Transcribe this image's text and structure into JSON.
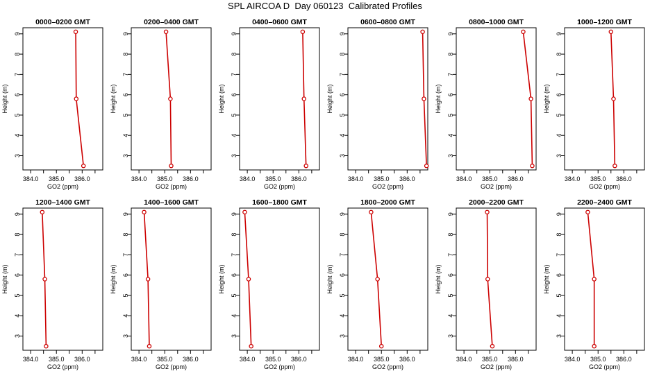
{
  "title": "SPL AIRCOA D  Day 060123  Calibrated Profiles",
  "chart_data": [
    {
      "type": "line",
      "title": "0000–0200 GMT",
      "xlabel": "GO2 (ppm)",
      "ylabel": "Height (m)",
      "xticks": [
        "384.0",
        "385.0",
        "386.0"
      ],
      "yticks": [
        "3",
        "4",
        "5",
        "6",
        "7",
        "8",
        "9"
      ],
      "xlim": [
        383.7,
        386.8
      ],
      "ylim": [
        2.3,
        9.3
      ],
      "color": "#cc0000",
      "x": [
        385.75,
        385.77,
        386.05
      ],
      "y": [
        9.1,
        5.8,
        2.5
      ]
    },
    {
      "type": "line",
      "title": "0200–0400 GMT",
      "xlabel": "GO2 (ppm)",
      "ylabel": "Height (m)",
      "xticks": [
        "384.0",
        "385.0",
        "386.0"
      ],
      "yticks": [
        "3",
        "4",
        "5",
        "6",
        "7",
        "8",
        "9"
      ],
      "xlim": [
        383.7,
        386.8
      ],
      "ylim": [
        2.3,
        9.3
      ],
      "color": "#cc0000",
      "x": [
        385.05,
        385.22,
        385.25
      ],
      "y": [
        9.1,
        5.8,
        2.5
      ]
    },
    {
      "type": "line",
      "title": "0400–0600 GMT",
      "xlabel": "GO2 (ppm)",
      "ylabel": "Height (m)",
      "xticks": [
        "384.0",
        "385.0",
        "386.0"
      ],
      "yticks": [
        "3",
        "4",
        "5",
        "6",
        "7",
        "8",
        "9"
      ],
      "xlim": [
        383.7,
        386.8
      ],
      "ylim": [
        2.3,
        9.3
      ],
      "color": "#cc0000",
      "x": [
        386.15,
        386.2,
        386.28
      ],
      "y": [
        9.1,
        5.8,
        2.5
      ]
    },
    {
      "type": "line",
      "title": "0600–0800 GMT",
      "xlabel": "GO2 (ppm)",
      "ylabel": "Height (m)",
      "xticks": [
        "384.0",
        "385.0",
        "386.0"
      ],
      "yticks": [
        "3",
        "4",
        "5",
        "6",
        "7",
        "8",
        "9"
      ],
      "xlim": [
        383.7,
        386.8
      ],
      "ylim": [
        2.3,
        9.3
      ],
      "color": "#cc0000",
      "x": [
        386.6,
        386.65,
        386.75
      ],
      "y": [
        9.1,
        5.8,
        2.5
      ]
    },
    {
      "type": "line",
      "title": "0800–1000 GMT",
      "xlabel": "GO2 (ppm)",
      "ylabel": "Height (m)",
      "xticks": [
        "384.0",
        "385.0",
        "386.0"
      ],
      "yticks": [
        "3",
        "4",
        "5",
        "6",
        "7",
        "8",
        "9"
      ],
      "xlim": [
        383.7,
        386.8
      ],
      "ylim": [
        2.3,
        9.3
      ],
      "color": "#cc0000",
      "x": [
        386.3,
        386.6,
        386.65
      ],
      "y": [
        9.1,
        5.8,
        2.5
      ]
    },
    {
      "type": "line",
      "title": "1000–1200 GMT",
      "xlabel": "GO2 (ppm)",
      "ylabel": "Height (m)",
      "xticks": [
        "384.0",
        "385.0",
        "386.0"
      ],
      "yticks": [
        "3",
        "4",
        "5",
        "6",
        "7",
        "8",
        "9"
      ],
      "xlim": [
        383.7,
        386.8
      ],
      "ylim": [
        2.3,
        9.3
      ],
      "color": "#cc0000",
      "x": [
        385.5,
        385.6,
        385.65
      ],
      "y": [
        9.1,
        5.8,
        2.5
      ]
    },
    {
      "type": "line",
      "title": "1200–1400 GMT",
      "xlabel": "GO2 (ppm)",
      "ylabel": "Height (m)",
      "xticks": [
        "384.0",
        "385.0",
        "386.0"
      ],
      "yticks": [
        "3",
        "4",
        "5",
        "6",
        "7",
        "8",
        "9"
      ],
      "xlim": [
        383.7,
        386.8
      ],
      "ylim": [
        2.3,
        9.3
      ],
      "color": "#cc0000",
      "x": [
        384.45,
        384.55,
        384.6
      ],
      "y": [
        9.1,
        5.8,
        2.5
      ]
    },
    {
      "type": "line",
      "title": "1400–1600 GMT",
      "xlabel": "GO2 (ppm)",
      "ylabel": "Height (m)",
      "xticks": [
        "384.0",
        "385.0",
        "386.0"
      ],
      "yticks": [
        "3",
        "4",
        "5",
        "6",
        "7",
        "8",
        "9"
      ],
      "xlim": [
        383.7,
        386.8
      ],
      "ylim": [
        2.3,
        9.3
      ],
      "color": "#cc0000",
      "x": [
        384.2,
        384.35,
        384.4
      ],
      "y": [
        9.1,
        5.8,
        2.5
      ]
    },
    {
      "type": "line",
      "title": "1600–1800 GMT",
      "xlabel": "GO2 (ppm)",
      "ylabel": "Height (m)",
      "xticks": [
        "384.0",
        "385.0",
        "386.0"
      ],
      "yticks": [
        "3",
        "4",
        "5",
        "6",
        "7",
        "8",
        "9"
      ],
      "xlim": [
        383.7,
        386.8
      ],
      "ylim": [
        2.3,
        9.3
      ],
      "color": "#cc0000",
      "x": [
        383.9,
        384.05,
        384.15
      ],
      "y": [
        9.1,
        5.8,
        2.5
      ]
    },
    {
      "type": "line",
      "title": "1800–2000 GMT",
      "xlabel": "GO2 (ppm)",
      "ylabel": "Height (m)",
      "xticks": [
        "384.0",
        "385.0",
        "386.0"
      ],
      "yticks": [
        "3",
        "4",
        "5",
        "6",
        "7",
        "8",
        "9"
      ],
      "xlim": [
        383.7,
        386.8
      ],
      "ylim": [
        2.3,
        9.3
      ],
      "color": "#cc0000",
      "x": [
        384.6,
        384.85,
        385.0
      ],
      "y": [
        9.1,
        5.8,
        2.5
      ]
    },
    {
      "type": "line",
      "title": "2000–2200 GMT",
      "xlabel": "GO2 (ppm)",
      "ylabel": "Height (m)",
      "xticks": [
        "384.0",
        "385.0",
        "386.0"
      ],
      "yticks": [
        "3",
        "4",
        "5",
        "6",
        "7",
        "8",
        "9"
      ],
      "xlim": [
        383.7,
        386.8
      ],
      "ylim": [
        2.3,
        9.3
      ],
      "color": "#cc0000",
      "x": [
        384.9,
        384.92,
        385.1
      ],
      "y": [
        9.1,
        5.8,
        2.5
      ]
    },
    {
      "type": "line",
      "title": "2200–2400 GMT",
      "xlabel": "GO2 (ppm)",
      "ylabel": "Height (m)",
      "xticks": [
        "384.0",
        "385.0",
        "386.0"
      ],
      "yticks": [
        "3",
        "4",
        "5",
        "6",
        "7",
        "8",
        "9"
      ],
      "xlim": [
        383.7,
        386.8
      ],
      "ylim": [
        2.3,
        9.3
      ],
      "color": "#cc0000",
      "x": [
        384.6,
        384.85,
        384.85
      ],
      "y": [
        9.1,
        5.8,
        2.5
      ]
    }
  ]
}
